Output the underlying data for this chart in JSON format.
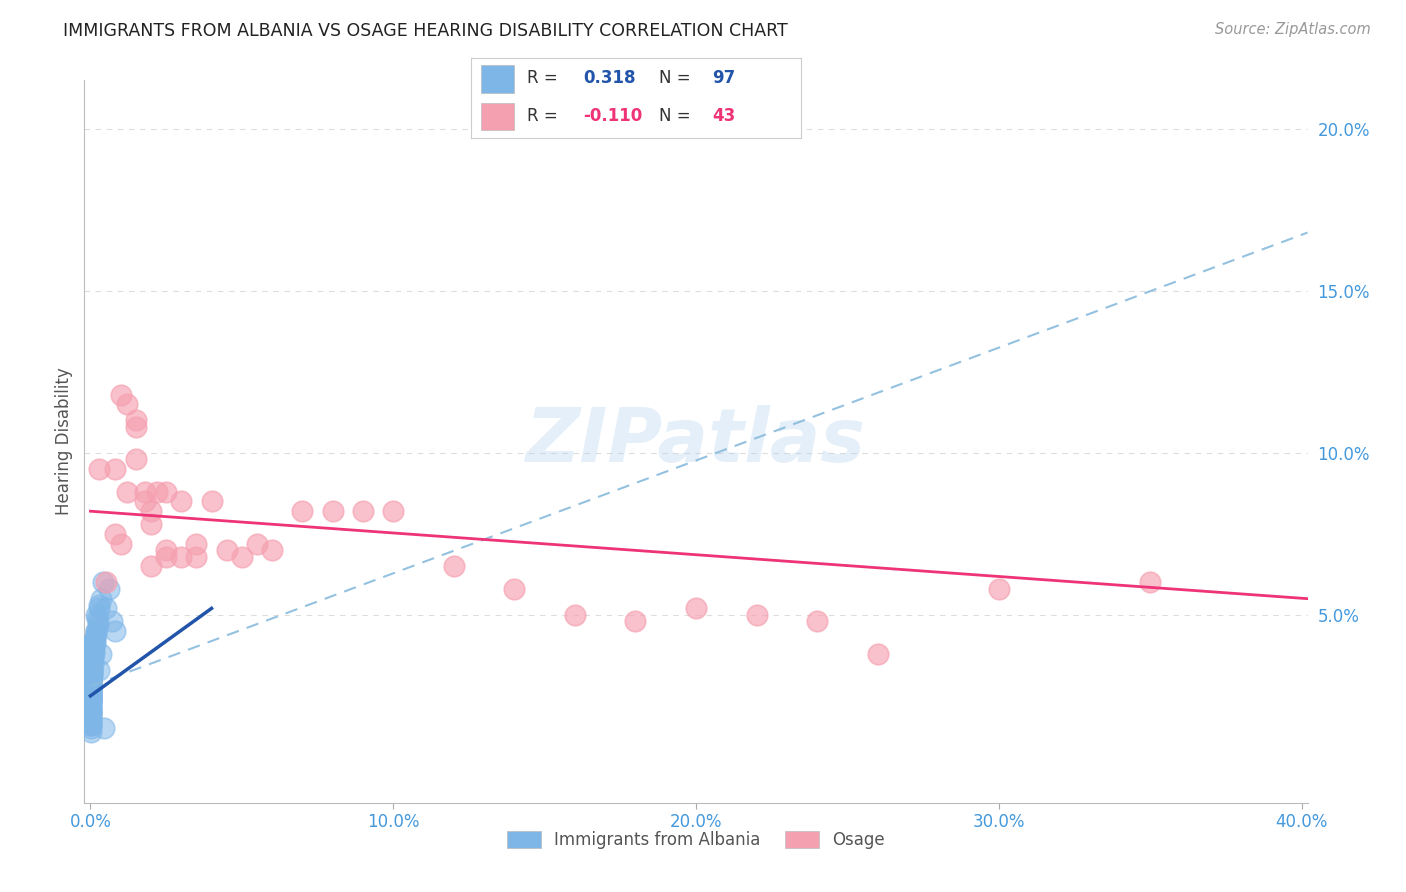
{
  "title": "IMMIGRANTS FROM ALBANIA VS OSAGE HEARING DISABILITY CORRELATION CHART",
  "source": "Source: ZipAtlas.com",
  "ylabel": "Hearing Disability",
  "xlim": [
    -0.002,
    0.402
  ],
  "ylim": [
    -0.008,
    0.215
  ],
  "xtick_vals": [
    0.0,
    0.1,
    0.2,
    0.3,
    0.4
  ],
  "xtick_labels": [
    "0.0%",
    "10.0%",
    "20.0%",
    "30.0%",
    "40.0%"
  ],
  "ytick_vals": [
    0.05,
    0.1,
    0.15,
    0.2
  ],
  "ytick_labels": [
    "5.0%",
    "10.0%",
    "15.0%",
    "20.0%"
  ],
  "watermark": "ZIPatlas",
  "albania_color": "#7EB6E8",
  "osage_color": "#F5A0B0",
  "albania_trend_color": "#2255AA",
  "osage_trend_color": "#EE3377",
  "dashed_color": "#88BBDD",
  "grid_color": "#DDDDDD",
  "title_color": "#222222",
  "axis_tick_color": "#4499DD",
  "background_color": "#FFFFFF",
  "legend_r1": "0.318",
  "legend_n1": "97",
  "legend_r2": "-0.110",
  "legend_n2": "43",
  "albania_x": [
    0.0002,
    0.0003,
    0.0004,
    0.0002,
    0.0005,
    0.0003,
    0.0001,
    0.0004,
    0.0002,
    0.0003,
    0.0001,
    0.0002,
    0.0003,
    0.0002,
    0.0001,
    0.0003,
    0.0002,
    0.0001,
    0.0004,
    0.0002,
    0.0001,
    0.0003,
    0.0002,
    0.0004,
    0.0001,
    0.0003,
    0.0002,
    0.0001,
    0.0002,
    0.0003,
    0.0001,
    0.0002,
    0.0001,
    0.0003,
    0.0002,
    0.0001,
    0.0002,
    0.0003,
    0.0001,
    0.0002,
    0.0001,
    0.0002,
    0.0003,
    0.0001,
    0.0002,
    0.0001,
    0.0003,
    0.0002,
    0.0001,
    0.0002,
    0.0001,
    0.0003,
    0.0002,
    0.0001,
    0.0002,
    0.0001,
    0.0003,
    0.0002,
    0.0001,
    0.0002,
    0.0005,
    0.0006,
    0.0004,
    0.0007,
    0.0005,
    0.0006,
    0.0004,
    0.0008,
    0.0005,
    0.0006,
    0.001,
    0.0012,
    0.0015,
    0.001,
    0.0018,
    0.0012,
    0.002,
    0.0015,
    0.0008,
    0.001,
    0.0025,
    0.002,
    0.003,
    0.0025,
    0.0035,
    0.0015,
    0.004,
    0.003,
    0.0018,
    0.0022,
    0.005,
    0.006,
    0.007,
    0.008,
    0.0035,
    0.0028,
    0.0045
  ],
  "albania_y": [
    0.028,
    0.03,
    0.032,
    0.025,
    0.033,
    0.027,
    0.022,
    0.031,
    0.024,
    0.029,
    0.02,
    0.026,
    0.031,
    0.023,
    0.028,
    0.032,
    0.025,
    0.021,
    0.034,
    0.027,
    0.019,
    0.03,
    0.024,
    0.033,
    0.021,
    0.028,
    0.025,
    0.02,
    0.027,
    0.031,
    0.022,
    0.029,
    0.018,
    0.032,
    0.026,
    0.023,
    0.03,
    0.033,
    0.019,
    0.027,
    0.017,
    0.024,
    0.031,
    0.02,
    0.028,
    0.016,
    0.03,
    0.025,
    0.018,
    0.026,
    0.015,
    0.029,
    0.023,
    0.017,
    0.027,
    0.014,
    0.031,
    0.024,
    0.016,
    0.025,
    0.035,
    0.038,
    0.032,
    0.04,
    0.036,
    0.039,
    0.033,
    0.042,
    0.037,
    0.041,
    0.04,
    0.038,
    0.042,
    0.035,
    0.045,
    0.039,
    0.05,
    0.043,
    0.037,
    0.04,
    0.048,
    0.044,
    0.052,
    0.047,
    0.055,
    0.041,
    0.06,
    0.053,
    0.045,
    0.049,
    0.052,
    0.058,
    0.048,
    0.045,
    0.038,
    0.033,
    0.015
  ],
  "osage_x": [
    0.003,
    0.005,
    0.008,
    0.01,
    0.012,
    0.015,
    0.018,
    0.02,
    0.022,
    0.025,
    0.008,
    0.012,
    0.015,
    0.018,
    0.02,
    0.025,
    0.03,
    0.035,
    0.04,
    0.045,
    0.05,
    0.055,
    0.06,
    0.07,
    0.08,
    0.09,
    0.1,
    0.12,
    0.14,
    0.16,
    0.18,
    0.2,
    0.22,
    0.24,
    0.26,
    0.3,
    0.35,
    0.025,
    0.03,
    0.035,
    0.02,
    0.015,
    0.01
  ],
  "osage_y": [
    0.095,
    0.06,
    0.075,
    0.072,
    0.115,
    0.108,
    0.088,
    0.078,
    0.088,
    0.068,
    0.095,
    0.088,
    0.11,
    0.085,
    0.065,
    0.088,
    0.085,
    0.072,
    0.085,
    0.07,
    0.068,
    0.072,
    0.07,
    0.082,
    0.082,
    0.082,
    0.082,
    0.065,
    0.058,
    0.05,
    0.048,
    0.052,
    0.05,
    0.048,
    0.038,
    0.058,
    0.06,
    0.07,
    0.068,
    0.068,
    0.082,
    0.098,
    0.118
  ],
  "albania_trend": [
    0.0,
    0.04,
    0.025,
    0.052
  ],
  "osage_trend": [
    0.0,
    0.402,
    0.082,
    0.055
  ],
  "dashed_trend": [
    0.0,
    0.402,
    0.028,
    0.168
  ]
}
